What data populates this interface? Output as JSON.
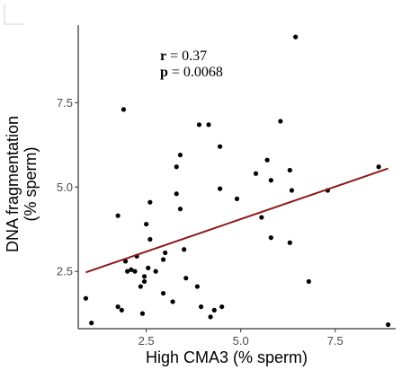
{
  "chart_data": {
    "type": "scatter",
    "title": "",
    "xlabel": "High CMA3 (% sperm)",
    "ylabel_lines": [
      "DNA fragmentation",
      "(% sperm)"
    ],
    "xlim": [
      0.7,
      9.1
    ],
    "ylim": [
      0.8,
      9.8
    ],
    "x_ticks": [
      2.5,
      5.0,
      7.5
    ],
    "x_tick_labels": [
      "2.5",
      "5.0",
      "7.5"
    ],
    "y_ticks": [
      2.5,
      5.0,
      7.5
    ],
    "y_tick_labels": [
      "2.5",
      "5.0",
      "7.5"
    ],
    "grid": false,
    "annotations": [
      {
        "bold": "r",
        "rest": " = 0.37"
      },
      {
        "bold": "p",
        "rest": " = 0.0068"
      }
    ],
    "regression": {
      "x": [
        0.9,
        8.9
      ],
      "y": [
        2.47,
        5.55
      ],
      "color": "#8b1a1a"
    },
    "point_color": "#000000",
    "points": [
      {
        "x": 0.9,
        "y": 1.7
      },
      {
        "x": 1.05,
        "y": 0.97
      },
      {
        "x": 1.75,
        "y": 4.15
      },
      {
        "x": 1.75,
        "y": 1.45
      },
      {
        "x": 1.85,
        "y": 1.35
      },
      {
        "x": 1.9,
        "y": 7.3
      },
      {
        "x": 1.95,
        "y": 2.8
      },
      {
        "x": 2.0,
        "y": 2.5
      },
      {
        "x": 2.1,
        "y": 2.55
      },
      {
        "x": 2.2,
        "y": 2.5
      },
      {
        "x": 2.25,
        "y": 2.95
      },
      {
        "x": 2.35,
        "y": 2.05
      },
      {
        "x": 2.4,
        "y": 1.25
      },
      {
        "x": 2.45,
        "y": 2.35
      },
      {
        "x": 2.45,
        "y": 2.2
      },
      {
        "x": 2.5,
        "y": 3.9
      },
      {
        "x": 2.55,
        "y": 2.6
      },
      {
        "x": 2.6,
        "y": 3.45
      },
      {
        "x": 2.6,
        "y": 4.55
      },
      {
        "x": 2.75,
        "y": 2.5
      },
      {
        "x": 2.95,
        "y": 2.85
      },
      {
        "x": 2.95,
        "y": 1.85
      },
      {
        "x": 3.0,
        "y": 3.05
      },
      {
        "x": 3.2,
        "y": 1.6
      },
      {
        "x": 3.3,
        "y": 4.8
      },
      {
        "x": 3.3,
        "y": 5.6
      },
      {
        "x": 3.4,
        "y": 5.95
      },
      {
        "x": 3.4,
        "y": 4.35
      },
      {
        "x": 3.5,
        "y": 3.15
      },
      {
        "x": 3.55,
        "y": 2.3
      },
      {
        "x": 3.85,
        "y": 2.05
      },
      {
        "x": 3.9,
        "y": 6.85
      },
      {
        "x": 3.95,
        "y": 1.45
      },
      {
        "x": 4.15,
        "y": 6.85
      },
      {
        "x": 4.2,
        "y": 1.15
      },
      {
        "x": 4.3,
        "y": 1.35
      },
      {
        "x": 4.45,
        "y": 6.2
      },
      {
        "x": 4.45,
        "y": 4.95
      },
      {
        "x": 4.5,
        "y": 1.45
      },
      {
        "x": 4.9,
        "y": 4.65
      },
      {
        "x": 5.4,
        "y": 5.4
      },
      {
        "x": 5.55,
        "y": 4.1
      },
      {
        "x": 5.7,
        "y": 5.8
      },
      {
        "x": 5.8,
        "y": 5.2
      },
      {
        "x": 5.8,
        "y": 3.5
      },
      {
        "x": 6.05,
        "y": 6.95
      },
      {
        "x": 6.3,
        "y": 5.5
      },
      {
        "x": 6.3,
        "y": 3.35
      },
      {
        "x": 6.35,
        "y": 4.9
      },
      {
        "x": 6.45,
        "y": 9.45
      },
      {
        "x": 6.8,
        "y": 2.2
      },
      {
        "x": 7.3,
        "y": 4.9
      },
      {
        "x": 8.65,
        "y": 5.6
      },
      {
        "x": 8.9,
        "y": 0.92
      }
    ]
  }
}
